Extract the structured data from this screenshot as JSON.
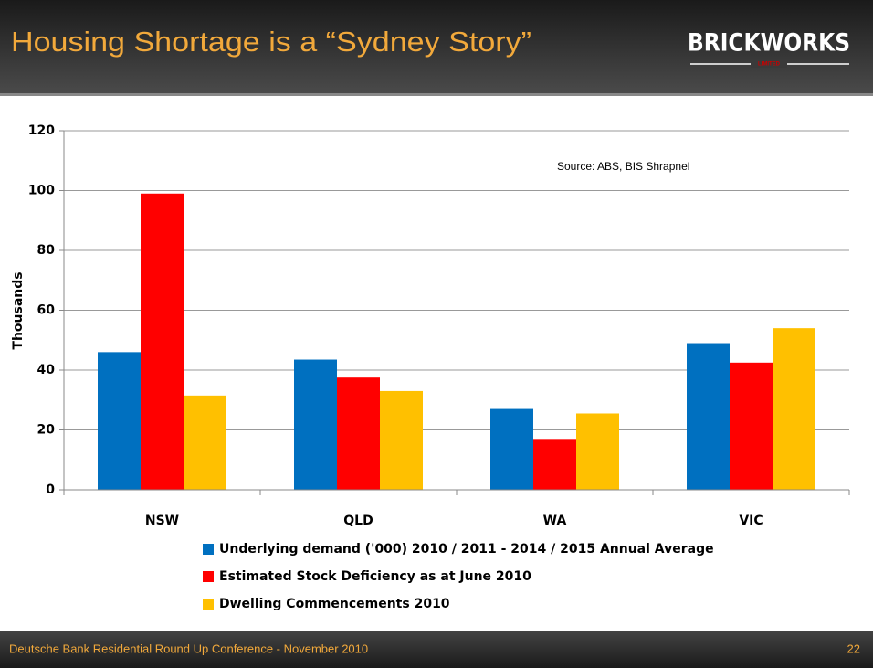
{
  "header": {
    "title": "Housing Shortage is a “Sydney Story”",
    "logo": "BRICKWORKS",
    "logo_sub": "LIMITED"
  },
  "chart_data": {
    "type": "bar",
    "annotation": "Source: ABS, BIS Shrapnel",
    "y_label": "Thousands",
    "categories": [
      "NSW",
      "QLD",
      "WA",
      "VIC"
    ],
    "series": [
      {
        "name": "Underlying demand ('000) 2010 / 2011 - 2014 / 2015 Annual Average",
        "color": "#0070c0",
        "values": [
          46,
          43.5,
          27,
          49
        ]
      },
      {
        "name": "Estimated Stock Deficiency as at June 2010",
        "color": "#ff0000",
        "values": [
          99,
          37.5,
          17,
          42.5
        ]
      },
      {
        "name": "Dwelling Commencements 2010",
        "color": "#ffc000",
        "values": [
          31.5,
          33,
          25.5,
          54
        ]
      }
    ],
    "ylim": [
      0,
      120
    ],
    "yticks": [
      0,
      20,
      40,
      60,
      80,
      100,
      120
    ],
    "grid": true
  },
  "footer": {
    "text": "Deutsche Bank Residential Round Up Conference  - November 2010",
    "page": 22
  }
}
